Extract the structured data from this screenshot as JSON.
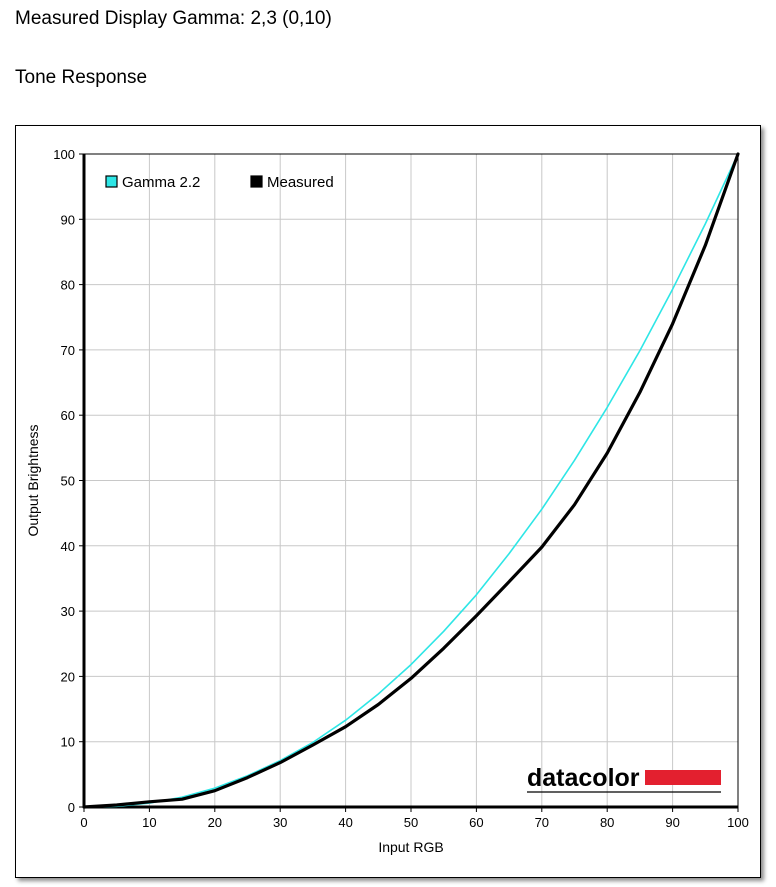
{
  "header": {
    "title": "Measured Display Gamma: 2,3 (0,10)",
    "subtitle": "Tone Response"
  },
  "logo": {
    "text": "datacolor",
    "color": "#e3202f"
  },
  "chart_data": {
    "type": "line",
    "xlabel": "Input RGB",
    "ylabel": "Output Brightness",
    "xlim": [
      0,
      100
    ],
    "ylim": [
      0,
      100
    ],
    "xticks": [
      0,
      10,
      20,
      30,
      40,
      50,
      60,
      70,
      80,
      90,
      100
    ],
    "yticks": [
      0,
      10,
      20,
      30,
      40,
      50,
      60,
      70,
      80,
      90,
      100
    ],
    "grid": true,
    "legend_position": "top-left",
    "series": [
      {
        "name": "Gamma 2.2",
        "color": "#2ee6e6",
        "x": [
          0,
          5,
          10,
          15,
          20,
          25,
          30,
          35,
          40,
          45,
          50,
          55,
          60,
          65,
          70,
          75,
          80,
          85,
          90,
          95,
          100
        ],
        "y": [
          0,
          0.1,
          0.6,
          1.5,
          2.9,
          4.8,
          7.1,
          9.9,
          13.3,
          17.3,
          21.8,
          26.9,
          32.5,
          38.8,
          45.6,
          53.1,
          61.2,
          69.9,
          79.3,
          89.3,
          100
        ]
      },
      {
        "name": "Measured",
        "color": "#000000",
        "x": [
          0,
          5,
          10,
          15,
          20,
          25,
          30,
          35,
          40,
          45,
          50,
          55,
          60,
          65,
          70,
          75,
          80,
          85,
          90,
          95,
          100
        ],
        "y": [
          0,
          0.3,
          0.8,
          1.2,
          2.5,
          4.5,
          6.8,
          9.5,
          12.3,
          15.7,
          19.7,
          24.3,
          29.3,
          34.5,
          39.8,
          46.3,
          54.2,
          63.5,
          74.0,
          86.0,
          100
        ]
      }
    ]
  }
}
